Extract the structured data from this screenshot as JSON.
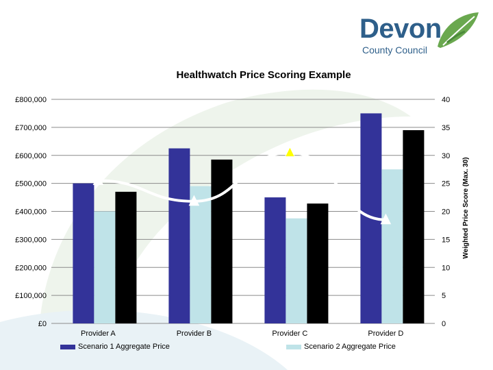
{
  "logo": {
    "name": "Devon",
    "sub": "County Council"
  },
  "chart_data": {
    "type": "bar",
    "title": "Healthwatch Price Scoring Example",
    "categories": [
      "Provider A",
      "Provider B",
      "Provider C",
      "Provider D"
    ],
    "series": [
      {
        "name": "Scenario 1 Aggregate Price",
        "values": [
          500000,
          625000,
          450000,
          750000
        ],
        "color": "#333399",
        "axis": "left"
      },
      {
        "name": "Scenario 2 Aggregate Price",
        "values": [
          400000,
          490000,
          375000,
          550000
        ],
        "color": "#bfe3e8",
        "axis": "left"
      },
      {
        "values": [
          470000,
          585000,
          428000,
          690000
        ],
        "color": "#000000",
        "axis": "left"
      }
    ],
    "line_series": {
      "type": "line",
      "axis": "right",
      "values": [
        25.5,
        21.8,
        30.5,
        18.5
      ],
      "color": "#ffffff"
    },
    "y_left": {
      "ylim": [
        0,
        800000
      ],
      "ticks": [
        "£0",
        "£100,000",
        "£200,000",
        "£300,000",
        "£400,000",
        "£500,000",
        "£600,000",
        "£700,000",
        "£800,000"
      ]
    },
    "y_right": {
      "ylabel": "Weighted Price Score (Max. 30)",
      "ylim": [
        0,
        40
      ],
      "ticks": [
        "0",
        "5",
        "10",
        "15",
        "20",
        "25",
        "30",
        "35",
        "40"
      ]
    },
    "grid": true,
    "legend": "bottom"
  }
}
